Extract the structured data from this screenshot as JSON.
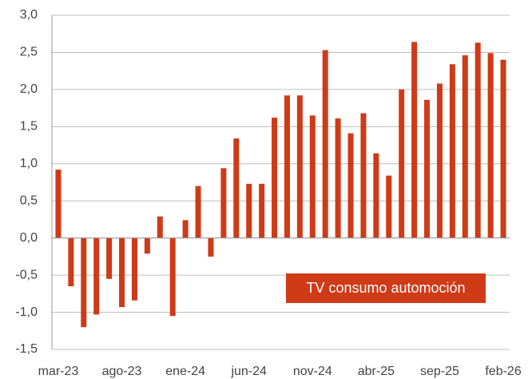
{
  "chart_data": {
    "type": "bar",
    "categories": [
      "mar-23",
      null,
      null,
      null,
      null,
      "ago-23",
      null,
      null,
      null,
      null,
      "ene-24",
      null,
      null,
      null,
      null,
      "jun-24",
      null,
      null,
      null,
      null,
      "nov-24",
      null,
      null,
      null,
      null,
      "abr-25",
      null,
      null,
      null,
      null,
      "sep-25",
      null,
      null,
      null,
      null,
      "feb-26"
    ],
    "series": [
      {
        "name": "TV consumo automoción",
        "color": "#cf3a17",
        "values": [
          0.92,
          -0.65,
          -1.2,
          -1.03,
          -0.55,
          -0.93,
          -0.84,
          -0.21,
          0.29,
          -1.05,
          0.24,
          0.7,
          -0.25,
          0.94,
          1.34,
          0.73,
          0.73,
          1.62,
          1.92,
          1.92,
          1.65,
          2.53,
          1.61,
          1.41,
          1.68,
          1.14,
          0.84,
          2.0,
          2.64,
          1.86,
          2.08,
          2.34,
          2.46,
          2.63,
          2.49,
          2.4
        ]
      }
    ],
    "ylim": [
      -1.5,
      3.0
    ],
    "yticks": [
      {
        "value": -1.5,
        "label": "-1,5"
      },
      {
        "value": -1.0,
        "label": "-1,0"
      },
      {
        "value": -0.5,
        "label": "-0,5"
      },
      {
        "value": 0.0,
        "label": "0,0"
      },
      {
        "value": 0.5,
        "label": "0,5"
      },
      {
        "value": 1.0,
        "label": "1,0"
      },
      {
        "value": 1.5,
        "label": "1,5"
      },
      {
        "value": 2.0,
        "label": "2,0"
      },
      {
        "value": 2.5,
        "label": "2,5"
      },
      {
        "value": 3.0,
        "label": "3,0"
      }
    ],
    "grid": true,
    "legend": "lower right"
  }
}
